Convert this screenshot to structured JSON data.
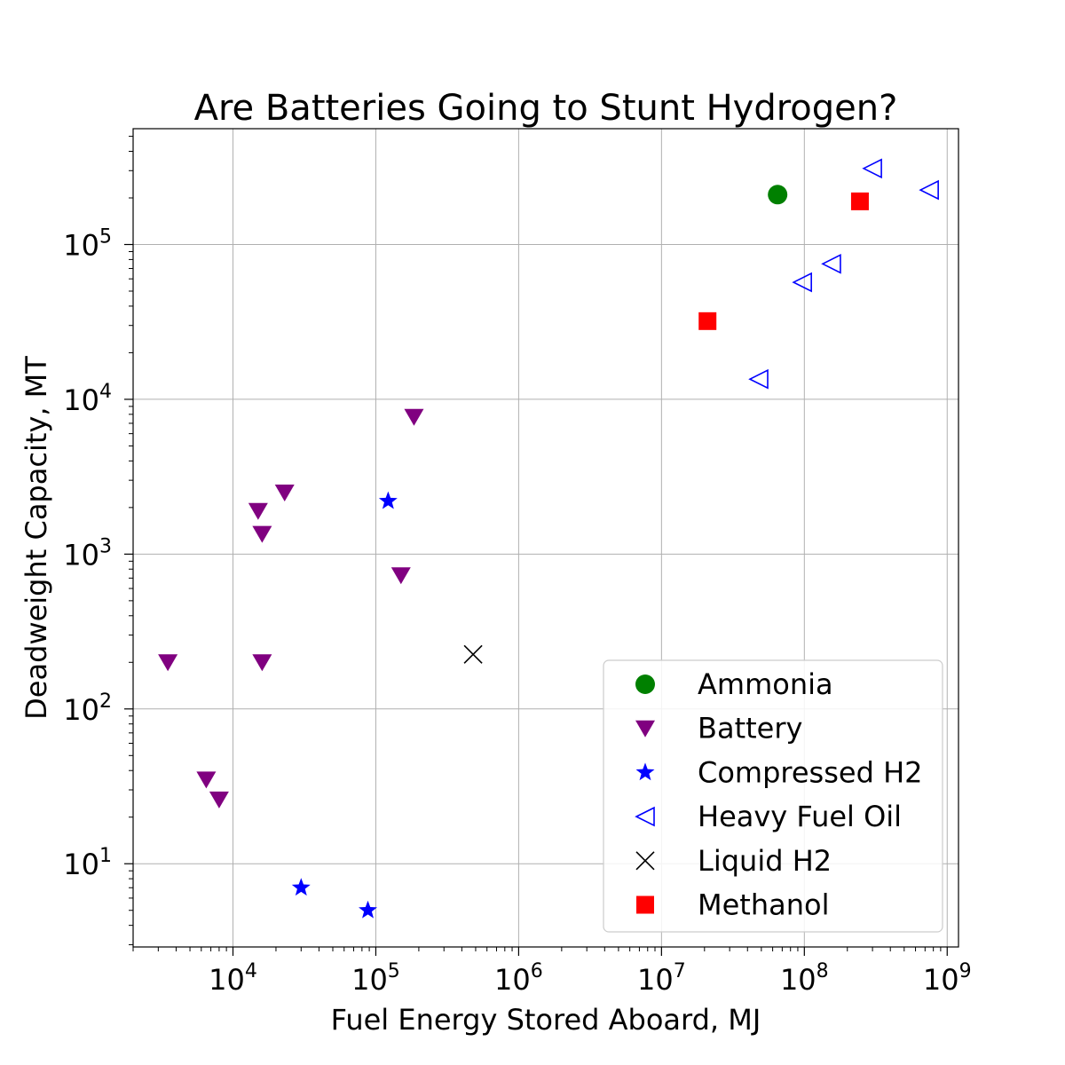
{
  "chart_data": {
    "type": "scatter",
    "title": "Are Batteries Going to Stunt Hydrogen?",
    "xlabel": "Fuel Energy Stored Aboard, MJ",
    "ylabel": "Deadweight Capacity, MT",
    "xscale": "log",
    "yscale": "log",
    "xlim": [
      2000,
      1200000000
    ],
    "ylim": [
      2.9,
      560000
    ],
    "grid": true,
    "legend_position": "lower-right",
    "x_ticks": [
      {
        "value": 10000,
        "base": "10",
        "exp": "4"
      },
      {
        "value": 100000,
        "base": "10",
        "exp": "5"
      },
      {
        "value": 1000000,
        "base": "10",
        "exp": "6"
      },
      {
        "value": 10000000,
        "base": "10",
        "exp": "7"
      },
      {
        "value": 100000000,
        "base": "10",
        "exp": "8"
      },
      {
        "value": 1000000000,
        "base": "10",
        "exp": "9"
      }
    ],
    "y_ticks": [
      {
        "value": 10,
        "base": "10",
        "exp": "1"
      },
      {
        "value": 100,
        "base": "10",
        "exp": "2"
      },
      {
        "value": 1000,
        "base": "10",
        "exp": "3"
      },
      {
        "value": 10000,
        "base": "10",
        "exp": "4"
      },
      {
        "value": 100000,
        "base": "10",
        "exp": "5"
      }
    ],
    "series": [
      {
        "name": "Ammonia",
        "marker": "circle",
        "color": "#008000",
        "points": [
          [
            65000000,
            210000
          ]
        ]
      },
      {
        "name": "Battery",
        "marker": "triangle-down",
        "color": "#800080",
        "points": [
          [
            3500,
            200
          ],
          [
            6500,
            35
          ],
          [
            8000,
            26
          ],
          [
            15000,
            1900
          ],
          [
            16000,
            1350
          ],
          [
            16000,
            200
          ],
          [
            23000,
            2500
          ],
          [
            150000,
            730
          ],
          [
            185000,
            7700
          ]
        ]
      },
      {
        "name": "Compressed H2",
        "marker": "star",
        "color": "#0000ff",
        "points": [
          [
            30000,
            7
          ],
          [
            88000,
            5
          ],
          [
            122000,
            2200
          ]
        ]
      },
      {
        "name": "Heavy Fuel Oil",
        "marker": "triangle-left-open",
        "color": "#0000ff",
        "points": [
          [
            48000000,
            13500
          ],
          [
            97000000,
            57000
          ],
          [
            155000000,
            75000
          ],
          [
            300000000,
            310000
          ],
          [
            750000000,
            225000
          ]
        ]
      },
      {
        "name": "Liquid H2",
        "marker": "x",
        "color": "#000000",
        "points": [
          [
            480000,
            225
          ]
        ]
      },
      {
        "name": "Methanol",
        "marker": "square",
        "color": "#ff0000",
        "points": [
          [
            21000000,
            32000
          ],
          [
            245000000,
            190000
          ]
        ]
      }
    ]
  }
}
